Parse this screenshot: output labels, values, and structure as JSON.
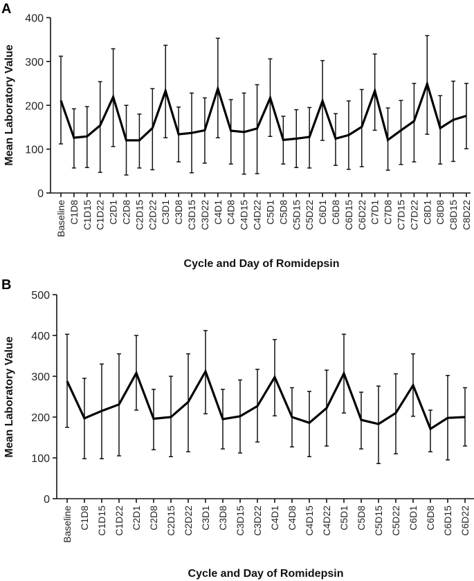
{
  "chart_data": [
    {
      "panel": "A",
      "type": "line",
      "title": "",
      "xlabel": "Cycle and Day of Romidepsin",
      "ylabel": "Mean Laboratory Value",
      "ylim": [
        0,
        400
      ],
      "yticks": [
        0,
        100,
        200,
        300,
        400
      ],
      "grid": false,
      "legend": "none",
      "error_bars": true,
      "categories": [
        "Baseline",
        "C1D8",
        "C1D15",
        "C1D22",
        "C2D1",
        "C2D8",
        "C2D15",
        "C2D22",
        "C3D1",
        "C3D8",
        "C3D15",
        "C3D22",
        "C4D1",
        "C4D8",
        "C4D15",
        "C4D22",
        "C5D1",
        "C5D8",
        "C5D15",
        "C5D22",
        "C6D1",
        "C6D8",
        "C6D15",
        "C6D22",
        "C7D1",
        "C7D8",
        "C7D15",
        "C7D22",
        "C8D1",
        "C8D8",
        "C8D15",
        "C8D22"
      ],
      "series": [
        {
          "name": "Mean",
          "values": [
            211,
            126,
            129,
            154,
            219,
            120,
            120,
            148,
            233,
            134,
            137,
            143,
            238,
            142,
            139,
            147,
            217,
            121,
            124,
            128,
            210,
            124,
            132,
            151,
            233,
            121,
            143,
            164,
            249,
            148,
            167,
            176
          ],
          "upper": [
            312,
            192,
            197,
            254,
            329,
            200,
            180,
            238,
            337,
            196,
            228,
            217,
            353,
            213,
            228,
            247,
            306,
            175,
            190,
            195,
            302,
            181,
            210,
            236,
            317,
            194,
            211,
            250,
            359,
            222,
            255,
            250
          ],
          "lower": [
            112,
            57,
            58,
            47,
            106,
            41,
            57,
            53,
            126,
            71,
            46,
            68,
            126,
            66,
            43,
            44,
            129,
            66,
            58,
            57,
            120,
            63,
            54,
            60,
            143,
            52,
            65,
            71,
            134,
            66,
            72,
            101
          ]
        }
      ]
    },
    {
      "panel": "B",
      "type": "line",
      "title": "",
      "xlabel": "Cycle and Day of Romidepsin",
      "ylabel": "Mean Laboratory Value",
      "ylim": [
        0,
        500
      ],
      "yticks": [
        0,
        100,
        200,
        300,
        400,
        500
      ],
      "grid": false,
      "legend": "none",
      "error_bars": true,
      "categories": [
        "Baseline",
        "C1D8",
        "C1D15",
        "C1D22",
        "C2D1",
        "C2D8",
        "C2D15",
        "C2D22",
        "C3D1",
        "C3D8",
        "C3D15",
        "C3D22",
        "C4D1",
        "C4D8",
        "C4D15",
        "C4D22",
        "C5D1",
        "C5D8",
        "C5D15",
        "C5D22",
        "C6D1",
        "C6D8",
        "C6D15",
        "C6D22"
      ],
      "series": [
        {
          "name": "Mean",
          "values": [
            288,
            197,
            215,
            231,
            308,
            196,
            200,
            237,
            312,
            195,
            202,
            227,
            298,
            200,
            186,
            222,
            307,
            193,
            183,
            210,
            278,
            171,
            198,
            200
          ],
          "upper": [
            403,
            295,
            330,
            355,
            400,
            268,
            300,
            355,
            412,
            268,
            291,
            317,
            390,
            272,
            263,
            315,
            403,
            261,
            276,
            306,
            355,
            217,
            302,
            272
          ],
          "lower": [
            175,
            98,
            98,
            105,
            217,
            120,
            103,
            115,
            208,
            122,
            112,
            139,
            203,
            127,
            103,
            129,
            210,
            122,
            86,
            110,
            202,
            115,
            95,
            129
          ]
        }
      ]
    }
  ]
}
